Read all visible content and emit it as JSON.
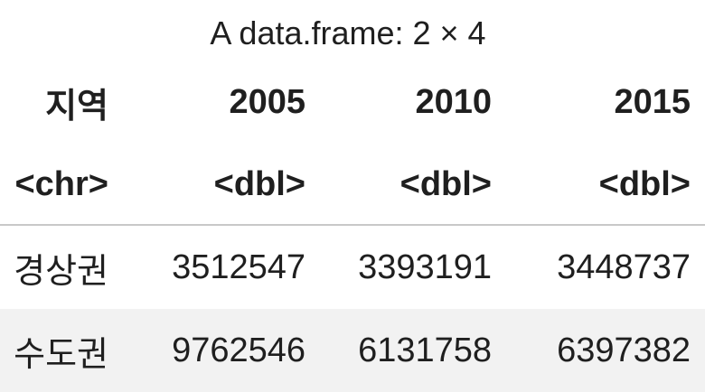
{
  "caption": "A data.frame: 2 × 4",
  "columns": [
    {
      "name": "지역",
      "type": "<chr>"
    },
    {
      "name": "2005",
      "type": "<dbl>"
    },
    {
      "name": "2010",
      "type": "<dbl>"
    },
    {
      "name": "2015",
      "type": "<dbl>"
    }
  ],
  "rows": [
    [
      "경상권",
      "3512547",
      "3393191",
      "3448737"
    ],
    [
      "수도권",
      "9762546",
      "6131758",
      "6397382"
    ]
  ],
  "colors": {
    "text": "#1f1f1f",
    "stripe": "#f2f2f2",
    "rule": "#c8c8c8"
  }
}
